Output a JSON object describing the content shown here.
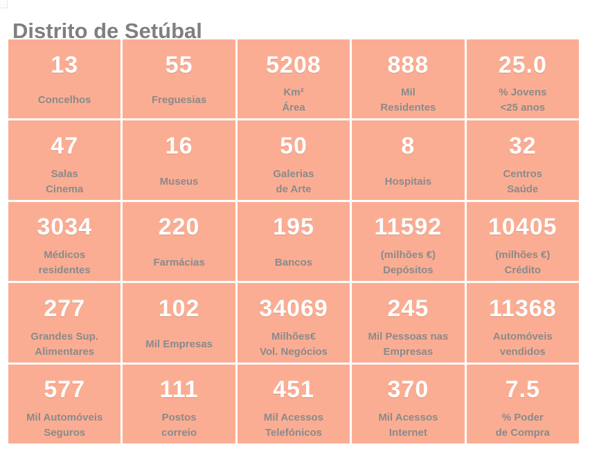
{
  "page": {
    "title": "Distrito de Setúbal"
  },
  "theme": {
    "background_color": "#FFFFFF",
    "tile_color": "#FBAD93",
    "value_color": "#FFFFFF",
    "label_color": "#8A8A8A",
    "title_color": "#7F7F7F"
  },
  "tiles": [
    {
      "value": "13",
      "label1": "Concelhos",
      "label2": ""
    },
    {
      "value": "55",
      "label1": "Freguesias",
      "label2": ""
    },
    {
      "value": "5208",
      "label1": "Km²",
      "label2": "Área"
    },
    {
      "value": "888",
      "label1": "Mil",
      "label2": "Residentes"
    },
    {
      "value": "25.0",
      "label1": "% Jovens",
      "label2": "<25 anos"
    },
    {
      "value": "47",
      "label1": "Salas",
      "label2": "Cinema"
    },
    {
      "value": "16",
      "label1": "Museus",
      "label2": ""
    },
    {
      "value": "50",
      "label1": "Galerias",
      "label2": "de Arte"
    },
    {
      "value": "8",
      "label1": "Hospitais",
      "label2": ""
    },
    {
      "value": "32",
      "label1": "Centros",
      "label2": "Saúde"
    },
    {
      "value": "3034",
      "label1": "Médicos",
      "label2": "residentes"
    },
    {
      "value": "220",
      "label1": "Farmácias",
      "label2": ""
    },
    {
      "value": "195",
      "label1": "Bancos",
      "label2": ""
    },
    {
      "value": "11592",
      "label1": "(milhões €)",
      "label2": "Depósitos"
    },
    {
      "value": "10405",
      "label1": "(milhões €)",
      "label2": "Crédito"
    },
    {
      "value": "277",
      "label1": "Grandes Sup.",
      "label2": "Alimentares"
    },
    {
      "value": "102",
      "label1": "Mil Empresas",
      "label2": ""
    },
    {
      "value": "34069",
      "label1": "Milhões€",
      "label2": "Vol. Negócios"
    },
    {
      "value": "245",
      "label1": "Mil Pessoas nas",
      "label2": "Empresas"
    },
    {
      "value": "11368",
      "label1": "Automóveis",
      "label2": "vendidos"
    },
    {
      "value": "577",
      "label1": "Mil Automóveis",
      "label2": "Seguros"
    },
    {
      "value": "111",
      "label1": "Postos",
      "label2": "correio"
    },
    {
      "value": "451",
      "label1": "Mil Acessos",
      "label2": "Telefónicos"
    },
    {
      "value": "370",
      "label1": "Mil Acessos",
      "label2": "Internet"
    },
    {
      "value": "7.5",
      "label1": "% Poder",
      "label2": "de Compra"
    }
  ],
  "chart_data": {
    "type": "table",
    "title": "Distrito de Setúbal",
    "columns": [
      "metric",
      "value",
      "unit"
    ],
    "rows": [
      [
        "Concelhos",
        13,
        ""
      ],
      [
        "Freguesias",
        55,
        ""
      ],
      [
        "Área",
        5208,
        "Km²"
      ],
      [
        "Residentes",
        888,
        "Mil"
      ],
      [
        "Jovens <25 anos",
        25.0,
        "%"
      ],
      [
        "Salas Cinema",
        47,
        ""
      ],
      [
        "Museus",
        16,
        ""
      ],
      [
        "Galerias de Arte",
        50,
        ""
      ],
      [
        "Hospitais",
        8,
        ""
      ],
      [
        "Centros Saúde",
        32,
        ""
      ],
      [
        "Médicos residentes",
        3034,
        ""
      ],
      [
        "Farmácias",
        220,
        ""
      ],
      [
        "Bancos",
        195,
        ""
      ],
      [
        "Depósitos",
        11592,
        "milhões €"
      ],
      [
        "Crédito",
        10405,
        "milhões €"
      ],
      [
        "Grandes Sup. Alimentares",
        277,
        ""
      ],
      [
        "Empresas",
        102,
        "Mil"
      ],
      [
        "Vol. Negócios",
        34069,
        "Milhões €"
      ],
      [
        "Pessoas nas Empresas",
        245,
        "Mil"
      ],
      [
        "Automóveis vendidos",
        11368,
        ""
      ],
      [
        "Automóveis Seguros",
        577,
        "Mil"
      ],
      [
        "Postos correio",
        111,
        ""
      ],
      [
        "Acessos Telefónicos",
        451,
        "Mil"
      ],
      [
        "Acessos Internet",
        370,
        "Mil"
      ],
      [
        "Poder de Compra",
        7.5,
        "%"
      ]
    ],
    "layout": {
      "grid": "5x5",
      "tile_color": "#FBAD93",
      "gap_color": "#FFFFFF"
    }
  }
}
